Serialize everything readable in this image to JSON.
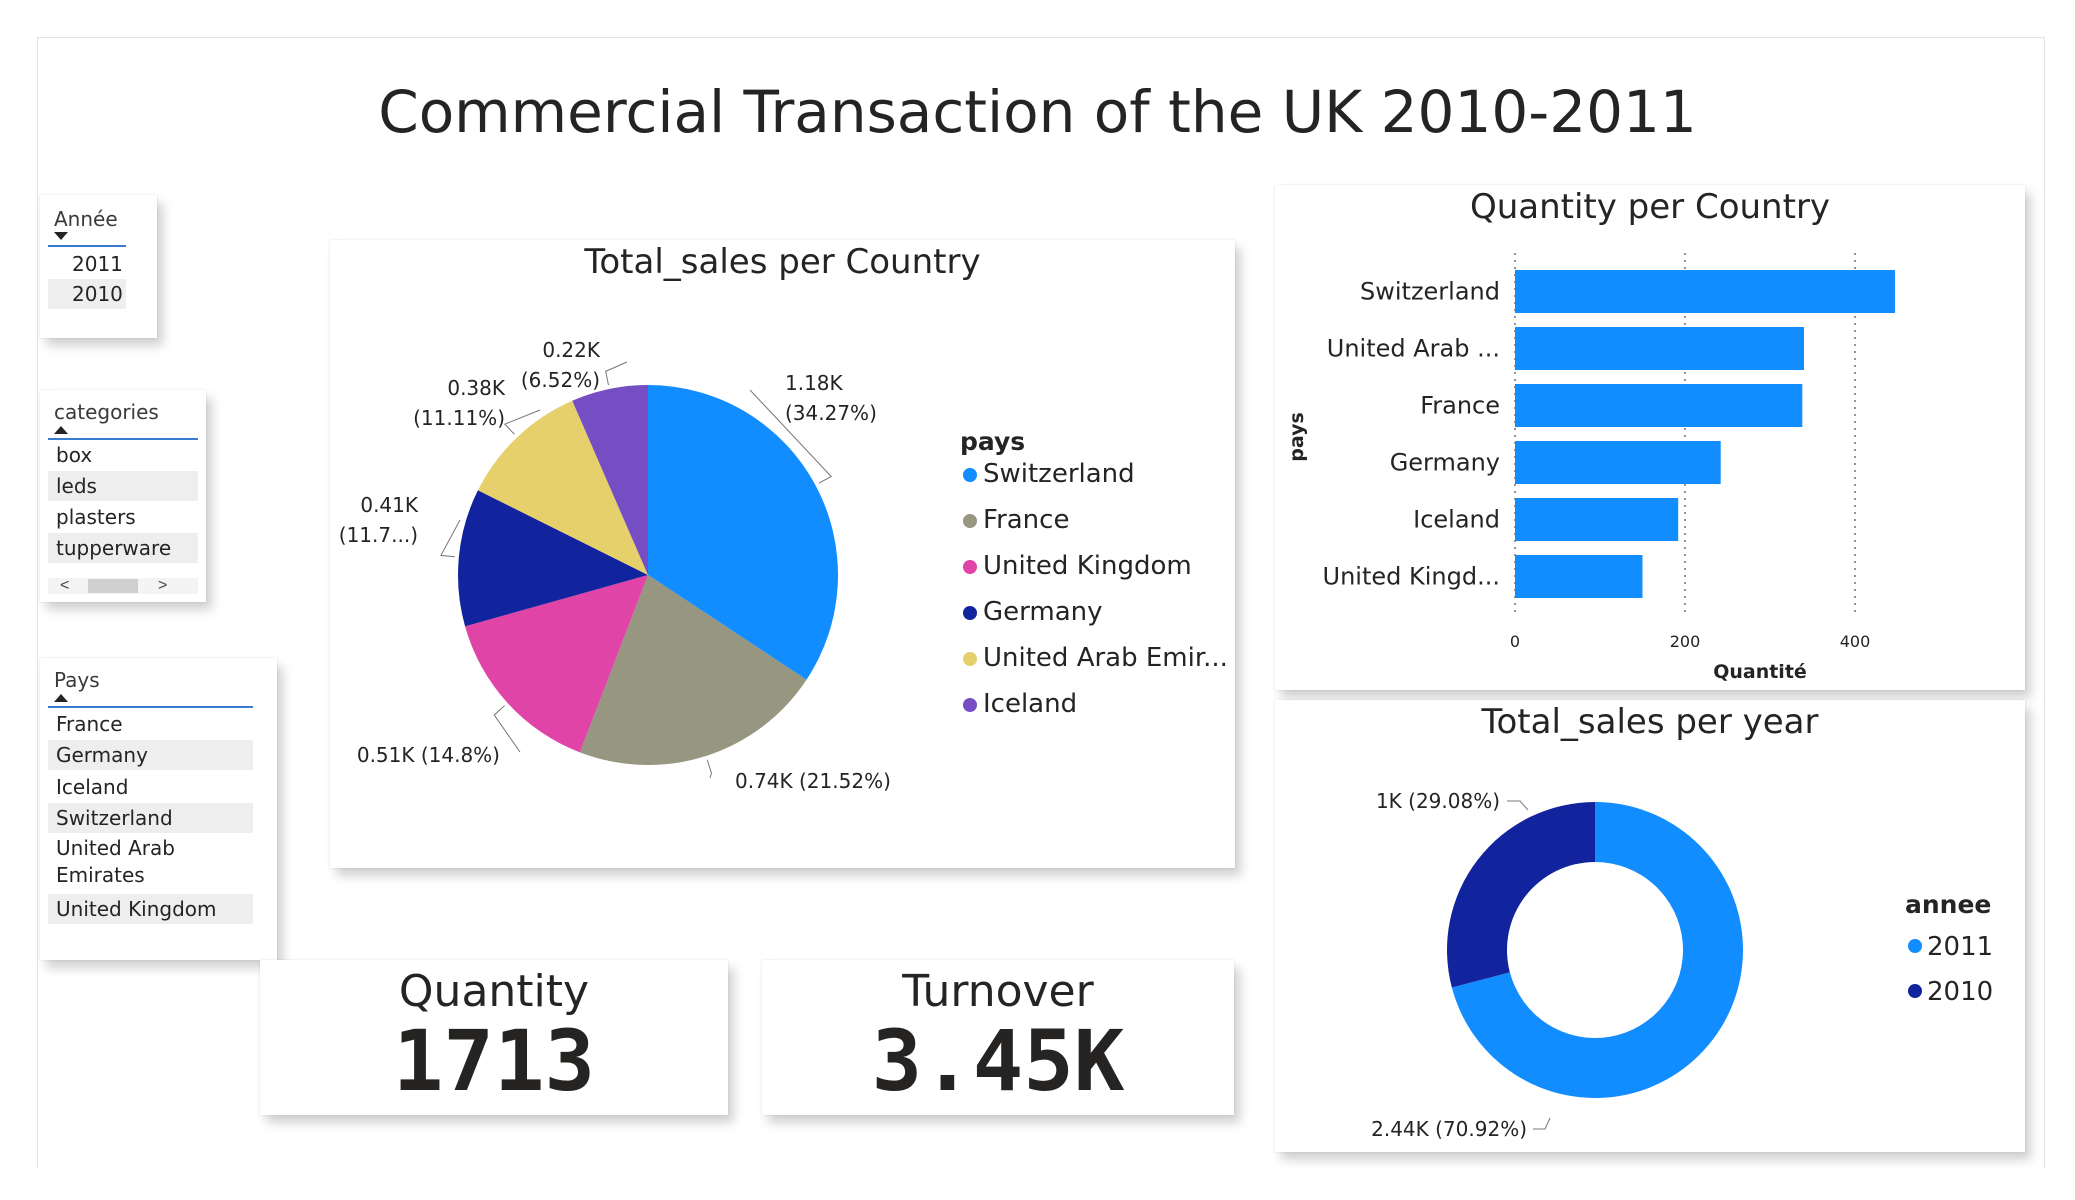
{
  "report": {
    "title": "Commercial Transaction of the UK 2010-2011"
  },
  "slicer_year": {
    "header": "Année",
    "items": [
      "2011",
      "2010"
    ]
  },
  "slicer_categories": {
    "header": "categories",
    "items": [
      "box",
      "leds",
      "plasters",
      "tupperware"
    ],
    "scroll_left": "<",
    "scroll_right": ">"
  },
  "slicer_country": {
    "header": "Pays",
    "items": [
      "France",
      "Germany",
      "Iceland",
      "Switzerland",
      "United Arab Emirates",
      "United Kingdom"
    ]
  },
  "kpi_quantity": {
    "label": "Quantity",
    "value": "1713"
  },
  "kpi_turnover": {
    "label": "Turnover",
    "value": "3.45K"
  },
  "colors": {
    "switzerland": "#118DFF",
    "france": "#979680",
    "united_kingdom": "#E044A7",
    "germany": "#12239E",
    "united_arab_emirates": "#E6D06B",
    "iceland": "#744EC2",
    "year_2011": "#118DFF",
    "year_2010": "#12239E",
    "bar": "#118DFF"
  },
  "chart_data": [
    {
      "id": "pie",
      "type": "pie",
      "title": "Total_sales per Country",
      "legend_title": "pays",
      "legend_position": "right",
      "slices": [
        {
          "name": "Switzerland",
          "value": 1.18,
          "percent": 34.27,
          "color": "#118DFF",
          "label_l1": "1.18K",
          "label_l2": "(34.27%)"
        },
        {
          "name": "France",
          "value": 0.74,
          "percent": 21.52,
          "color": "#979680",
          "label_l1": "0.74K (21.52%)",
          "label_l2": ""
        },
        {
          "name": "United Kingdom",
          "value": 0.51,
          "percent": 14.8,
          "color": "#E044A7",
          "label_l1": "0.51K (14.8%)",
          "label_l2": ""
        },
        {
          "name": "Germany",
          "value": 0.41,
          "percent": 11.7,
          "color": "#12239E",
          "label_l1": "0.41K",
          "label_l2": "(11.7...)"
        },
        {
          "name": "United Arab Emirates",
          "value": 0.38,
          "percent": 11.11,
          "color": "#E6D06B",
          "label_l1": "0.38K",
          "label_l2": "(11.11%)"
        },
        {
          "name": "Iceland",
          "value": 0.22,
          "percent": 6.52,
          "color": "#744EC2",
          "label_l1": "0.22K",
          "label_l2": "(6.52%)"
        }
      ],
      "legend_items": [
        "Switzerland",
        "France",
        "United Kingdom",
        "Germany",
        "United Arab Emir...",
        "Iceland"
      ]
    },
    {
      "id": "bar",
      "type": "bar",
      "orientation": "horizontal",
      "title": "Quantity per Country",
      "xlabel": "Quantité",
      "ylabel": "pays",
      "xlim": [
        0,
        460
      ],
      "xticks": [
        0,
        200,
        400
      ],
      "grid": true,
      "categories": [
        "Switzerland",
        "United Arab ...",
        "France",
        "Germany",
        "Iceland",
        "United Kingd..."
      ],
      "values": [
        447,
        340,
        338,
        242,
        192,
        150
      ]
    },
    {
      "id": "donut",
      "type": "pie",
      "style": "donut",
      "title": "Total_sales per year",
      "legend_title": "annee",
      "legend_position": "right",
      "slices": [
        {
          "name": "2011",
          "value": 2.44,
          "percent": 70.92,
          "color": "#118DFF",
          "label": "2.44K (70.92%)"
        },
        {
          "name": "2010",
          "value": 1.0,
          "percent": 29.08,
          "color": "#12239E",
          "label": "1K (29.08%)"
        }
      ],
      "legend_items": [
        "2011",
        "2010"
      ]
    }
  ]
}
